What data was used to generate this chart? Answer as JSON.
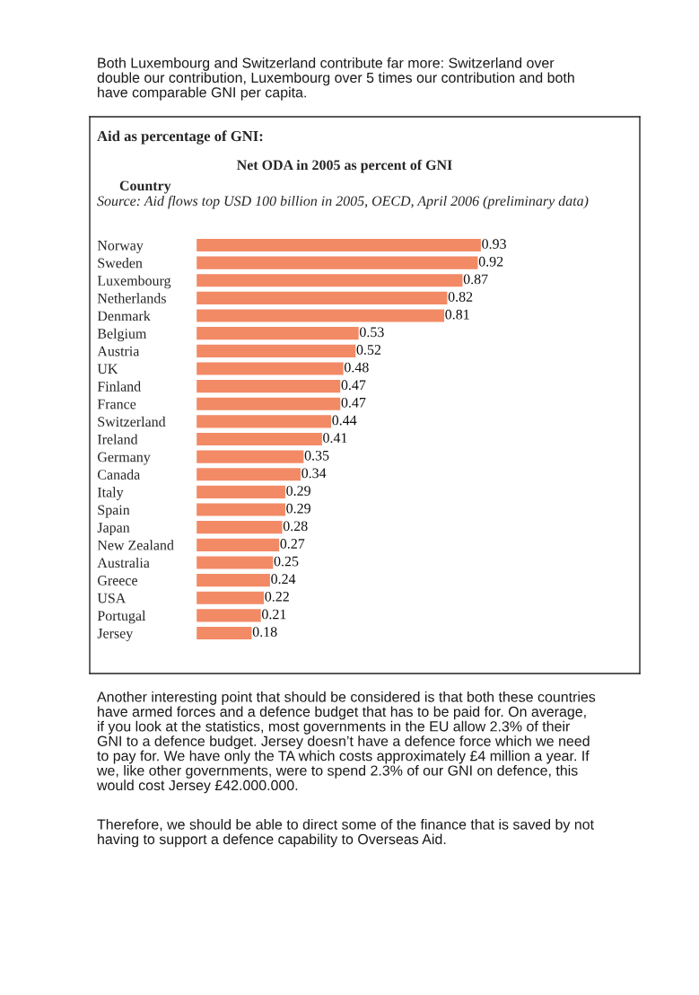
{
  "chart_data": {
    "type": "bar",
    "orientation": "horizontal",
    "title": "Aid as percentage of GNI:",
    "subtitle": "Net ODA in 2005 as percent of GNI",
    "ylabel": "Country",
    "annotations": [
      "Both Luxembourg and Switzerland contribute far more: Switzerland over double our contribution, Luxembourg over 5 times our contribution and both have comparable GNI per capita.",
      "Source: Aid flows top USD 100 billion in 2005, OECD, April 2006 (preliminary data)",
      "Another interesting point that should be considered is that both these countries have armed forces and a defence budget that has to be paid for. On average, if you look at the statistics, most governments in the EU allow 2.3% of their GNI to a defence budget. Jersey doesn’t have a defence force which we need to pay for. We have only the TA which costs approximately £4 million a year. If we, like other governments, were to spend 2.3% of our GNI on defence, this would cost Jersey £42.000.000.",
      "Therefore, we should be able to direct some of the finance that is saved by not having to support a defence capability to Overseas Aid."
    ],
    "categories": [
      "Norway",
      "Sweden",
      "Luxembourg",
      "Netherlands",
      "Denmark",
      "Belgium",
      "Austria",
      "UK",
      "Finland",
      "France",
      "Switzerland",
      "Ireland",
      "Germany",
      "Canada",
      "Italy",
      "Spain",
      "Japan",
      "New Zealand",
      "Australia",
      "Greece",
      "USA",
      "Portugal",
      "Jersey"
    ],
    "values": [
      0.93,
      0.92,
      0.87,
      0.82,
      0.81,
      0.53,
      0.52,
      0.48,
      0.47,
      0.47,
      0.44,
      0.41,
      0.35,
      0.34,
      0.29,
      0.29,
      0.28,
      0.27,
      0.25,
      0.24,
      0.22,
      0.21,
      0.18
    ],
    "color": "#f28a66",
    "xlim": [
      -0.35,
      1.45
    ],
    "data_labels": true,
    "tick_labels": "y"
  }
}
